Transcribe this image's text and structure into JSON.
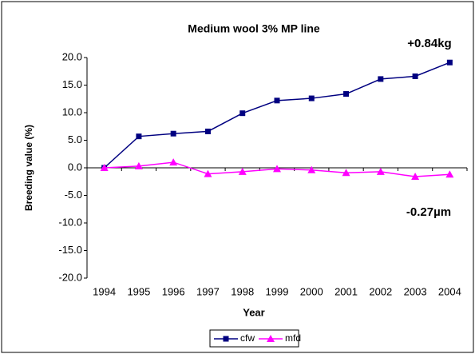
{
  "chart_data": {
    "type": "line",
    "title": "Medium wool 3% MP line",
    "x_label": "Year",
    "y_label": "Breeding value (%)",
    "categories": [
      "1994",
      "1995",
      "1996",
      "1997",
      "1998",
      "1999",
      "2000",
      "2001",
      "2002",
      "2003",
      "2004"
    ],
    "series": [
      {
        "name": "cfw",
        "color": "#000080",
        "marker": "square",
        "values": [
          0,
          5.7,
          6.2,
          6.6,
          9.9,
          12.2,
          12.6,
          13.4,
          16.1,
          16.6,
          19.1
        ]
      },
      {
        "name": "mfd",
        "color": "#ff00ff",
        "marker": "triangle",
        "values": [
          0,
          0.3,
          1.0,
          -1.1,
          -0.7,
          -0.2,
          -0.4,
          -0.9,
          -0.7,
          -1.6,
          -1.2
        ]
      }
    ],
    "annotations": [
      "+0.84kg",
      "-0.27µm"
    ],
    "ylim": [
      -20,
      20
    ],
    "yticks": [
      {
        "value": -20,
        "label": "-20.0"
      },
      {
        "value": -15,
        "label": "-15.0"
      },
      {
        "value": -10,
        "label": "-10.0"
      },
      {
        "value": -5,
        "label": "-5.0"
      },
      {
        "value": 0,
        "label": "0.0"
      },
      {
        "value": 5,
        "label": "5.0"
      },
      {
        "value": 10,
        "label": "10.0"
      },
      {
        "value": 15,
        "label": "15.0"
      },
      {
        "value": 20,
        "label": "20.0"
      }
    ],
    "grid": false,
    "legend": "bottom"
  }
}
